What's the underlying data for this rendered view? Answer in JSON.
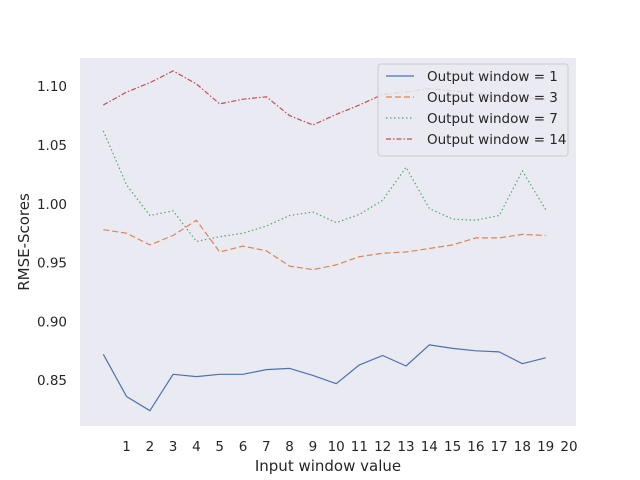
{
  "chart_data": {
    "type": "line",
    "title": "",
    "xlabel": "Input window value",
    "ylabel": "RMSE-Scores",
    "x": [
      0,
      1,
      2,
      3,
      4,
      5,
      6,
      7,
      8,
      9,
      10,
      11,
      12,
      13,
      14,
      15,
      16,
      17,
      18,
      19
    ],
    "x_ticks": [
      1,
      2,
      3,
      4,
      5,
      6,
      7,
      8,
      9,
      10,
      11,
      12,
      13,
      14,
      15,
      16,
      17,
      18,
      19,
      20
    ],
    "y_ticks": [
      0.85,
      0.9,
      0.95,
      1.0,
      1.05,
      1.1
    ],
    "xlim": [
      -1,
      20.3
    ],
    "ylim": [
      0.811,
      1.124
    ],
    "grid": false,
    "legend_position": "top-right",
    "series": [
      {
        "name": "Output window = 1",
        "color": "#4c72b0",
        "dash": "solid",
        "values": [
          0.872,
          0.836,
          0.824,
          0.855,
          0.853,
          0.855,
          0.855,
          0.859,
          0.86,
          0.854,
          0.847,
          0.863,
          0.871,
          0.862,
          0.88,
          0.877,
          0.875,
          0.874,
          0.864,
          0.869
        ]
      },
      {
        "name": "Output window = 3",
        "color": "#dd8452",
        "dash": "dashed",
        "values": [
          0.978,
          0.975,
          0.965,
          0.973,
          0.986,
          0.959,
          0.964,
          0.96,
          0.947,
          0.944,
          0.948,
          0.955,
          0.958,
          0.959,
          0.962,
          0.965,
          0.971,
          0.971,
          0.974,
          0.973
        ]
      },
      {
        "name": "Output window = 7",
        "color": "#55a868",
        "dash": "dotted",
        "values": [
          1.062,
          1.016,
          0.99,
          0.994,
          0.968,
          0.972,
          0.975,
          0.981,
          0.99,
          0.993,
          0.984,
          0.991,
          1.003,
          1.031,
          0.996,
          0.987,
          0.986,
          0.99,
          1.028,
          0.995
        ]
      },
      {
        "name": "Output window = 14",
        "color": "#c44e52",
        "dash": "dashdot",
        "values": [
          1.084,
          1.095,
          1.103,
          1.113,
          1.102,
          1.085,
          1.089,
          1.091,
          1.075,
          1.067,
          1.076,
          1.084,
          1.093,
          1.095,
          1.098,
          1.096,
          1.094,
          1.092,
          1.09,
          1.089
        ]
      }
    ]
  },
  "colors": {
    "plot_background": "#eaeaf2",
    "figure_background": "#ffffff",
    "text": "#262626"
  }
}
